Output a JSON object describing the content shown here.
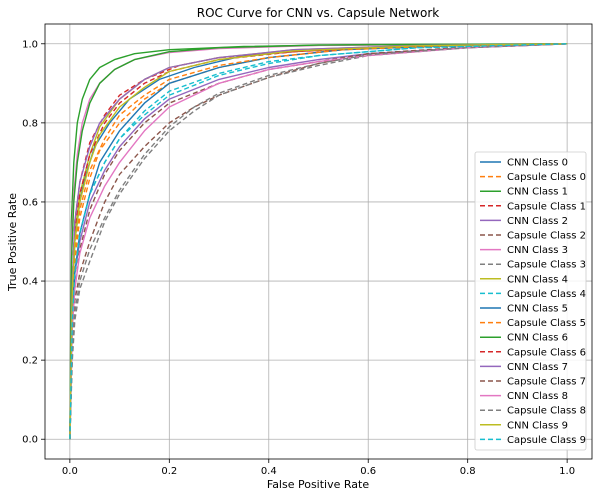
{
  "chart_data": {
    "type": "line",
    "title": "ROC Curve for CNN vs. Capsule Network",
    "xlabel": "False Positive Rate",
    "ylabel": "True Positive Rate",
    "xlim": [
      -0.05,
      1.05
    ],
    "ylim": [
      -0.05,
      1.05
    ],
    "xticks": [
      "0.0",
      "0.2",
      "0.4",
      "0.6",
      "0.8",
      "1.0"
    ],
    "yticks": [
      "0.0",
      "0.2",
      "0.4",
      "0.6",
      "0.8",
      "1.0"
    ],
    "grid": true,
    "legend_position": "lower-right",
    "series": [
      {
        "name": "CNN Class 0",
        "color": "#1f77b4",
        "dashed": false,
        "points": [
          [
            0,
            0
          ],
          [
            0.005,
            0.35
          ],
          [
            0.01,
            0.5
          ],
          [
            0.02,
            0.6
          ],
          [
            0.03,
            0.66
          ],
          [
            0.05,
            0.74
          ],
          [
            0.08,
            0.8
          ],
          [
            0.12,
            0.86
          ],
          [
            0.18,
            0.91
          ],
          [
            0.25,
            0.94
          ],
          [
            0.35,
            0.97
          ],
          [
            0.5,
            0.985
          ],
          [
            0.7,
            0.995
          ],
          [
            1,
            1
          ]
        ]
      },
      {
        "name": "Capsule Class 0",
        "color": "#ff7f0e",
        "dashed": true,
        "points": [
          [
            0,
            0
          ],
          [
            0.005,
            0.3
          ],
          [
            0.01,
            0.45
          ],
          [
            0.02,
            0.56
          ],
          [
            0.04,
            0.66
          ],
          [
            0.06,
            0.73
          ],
          [
            0.1,
            0.8
          ],
          [
            0.15,
            0.86
          ],
          [
            0.2,
            0.9
          ],
          [
            0.3,
            0.94
          ],
          [
            0.4,
            0.965
          ],
          [
            0.55,
            0.985
          ],
          [
            0.75,
            0.995
          ],
          [
            1,
            1
          ]
        ]
      },
      {
        "name": "CNN Class 1",
        "color": "#2ca02c",
        "dashed": false,
        "points": [
          [
            0,
            0
          ],
          [
            0.003,
            0.55
          ],
          [
            0.008,
            0.7
          ],
          [
            0.015,
            0.8
          ],
          [
            0.025,
            0.86
          ],
          [
            0.04,
            0.91
          ],
          [
            0.06,
            0.94
          ],
          [
            0.09,
            0.96
          ],
          [
            0.13,
            0.975
          ],
          [
            0.2,
            0.985
          ],
          [
            0.35,
            0.993
          ],
          [
            0.6,
            0.998
          ],
          [
            1,
            1
          ]
        ]
      },
      {
        "name": "Capsule Class 1",
        "color": "#d62728",
        "dashed": true,
        "points": [
          [
            0,
            0
          ],
          [
            0.005,
            0.4
          ],
          [
            0.01,
            0.55
          ],
          [
            0.02,
            0.65
          ],
          [
            0.04,
            0.75
          ],
          [
            0.07,
            0.82
          ],
          [
            0.1,
            0.87
          ],
          [
            0.15,
            0.91
          ],
          [
            0.22,
            0.945
          ],
          [
            0.3,
            0.965
          ],
          [
            0.45,
            0.98
          ],
          [
            0.65,
            0.992
          ],
          [
            1,
            1
          ]
        ]
      },
      {
        "name": "CNN Class 2",
        "color": "#9467bd",
        "dashed": false,
        "points": [
          [
            0,
            0
          ],
          [
            0.005,
            0.3
          ],
          [
            0.01,
            0.42
          ],
          [
            0.02,
            0.5
          ],
          [
            0.04,
            0.6
          ],
          [
            0.07,
            0.68
          ],
          [
            0.1,
            0.74
          ],
          [
            0.15,
            0.81
          ],
          [
            0.2,
            0.86
          ],
          [
            0.3,
            0.91
          ],
          [
            0.4,
            0.94
          ],
          [
            0.5,
            0.96
          ],
          [
            0.6,
            0.975
          ],
          [
            0.8,
            0.99
          ],
          [
            1,
            1
          ]
        ]
      },
      {
        "name": "Capsule Class 2",
        "color": "#8c564b",
        "dashed": true,
        "points": [
          [
            0,
            0
          ],
          [
            0.005,
            0.25
          ],
          [
            0.01,
            0.35
          ],
          [
            0.02,
            0.42
          ],
          [
            0.04,
            0.5
          ],
          [
            0.07,
            0.6
          ],
          [
            0.1,
            0.67
          ],
          [
            0.15,
            0.74
          ],
          [
            0.2,
            0.8
          ],
          [
            0.25,
            0.84
          ],
          [
            0.3,
            0.87
          ],
          [
            0.4,
            0.915
          ],
          [
            0.5,
            0.95
          ],
          [
            0.6,
            0.975
          ],
          [
            0.8,
            0.992
          ],
          [
            1,
            1
          ]
        ]
      },
      {
        "name": "CNN Class 3",
        "color": "#e377c2",
        "dashed": false,
        "points": [
          [
            0,
            0
          ],
          [
            0.003,
            0.5
          ],
          [
            0.008,
            0.62
          ],
          [
            0.015,
            0.72
          ],
          [
            0.025,
            0.8
          ],
          [
            0.04,
            0.86
          ],
          [
            0.06,
            0.9
          ],
          [
            0.09,
            0.935
          ],
          [
            0.13,
            0.96
          ],
          [
            0.2,
            0.978
          ],
          [
            0.3,
            0.988
          ],
          [
            0.5,
            0.996
          ],
          [
            1,
            1
          ]
        ]
      },
      {
        "name": "Capsule Class 3",
        "color": "#7f7f7f",
        "dashed": true,
        "points": [
          [
            0,
            0
          ],
          [
            0.005,
            0.2
          ],
          [
            0.01,
            0.3
          ],
          [
            0.02,
            0.38
          ],
          [
            0.04,
            0.45
          ],
          [
            0.07,
            0.55
          ],
          [
            0.1,
            0.62
          ],
          [
            0.15,
            0.71
          ],
          [
            0.2,
            0.78
          ],
          [
            0.25,
            0.83
          ],
          [
            0.3,
            0.87
          ],
          [
            0.4,
            0.915
          ],
          [
            0.5,
            0.945
          ],
          [
            0.6,
            0.97
          ],
          [
            0.8,
            0.99
          ],
          [
            1,
            1
          ]
        ]
      },
      {
        "name": "CNN Class 4",
        "color": "#bcbd22",
        "dashed": false,
        "points": [
          [
            0,
            0
          ],
          [
            0.005,
            0.4
          ],
          [
            0.01,
            0.52
          ],
          [
            0.02,
            0.62
          ],
          [
            0.04,
            0.72
          ],
          [
            0.06,
            0.79
          ],
          [
            0.1,
            0.86
          ],
          [
            0.15,
            0.91
          ],
          [
            0.2,
            0.94
          ],
          [
            0.3,
            0.965
          ],
          [
            0.45,
            0.985
          ],
          [
            0.7,
            0.996
          ],
          [
            1,
            1
          ]
        ]
      },
      {
        "name": "Capsule Class 4",
        "color": "#17becf",
        "dashed": true,
        "points": [
          [
            0,
            0
          ],
          [
            0.005,
            0.3
          ],
          [
            0.01,
            0.42
          ],
          [
            0.02,
            0.52
          ],
          [
            0.04,
            0.62
          ],
          [
            0.07,
            0.7
          ],
          [
            0.1,
            0.76
          ],
          [
            0.15,
            0.82
          ],
          [
            0.2,
            0.87
          ],
          [
            0.3,
            0.92
          ],
          [
            0.4,
            0.95
          ],
          [
            0.5,
            0.97
          ],
          [
            0.7,
            0.99
          ],
          [
            1,
            1
          ]
        ]
      },
      {
        "name": "CNN Class 5",
        "color": "#1f77b4",
        "dashed": false,
        "points": [
          [
            0,
            0
          ],
          [
            0.005,
            0.3
          ],
          [
            0.01,
            0.42
          ],
          [
            0.02,
            0.52
          ],
          [
            0.04,
            0.62
          ],
          [
            0.06,
            0.7
          ],
          [
            0.1,
            0.78
          ],
          [
            0.15,
            0.85
          ],
          [
            0.2,
            0.9
          ],
          [
            0.3,
            0.94
          ],
          [
            0.4,
            0.965
          ],
          [
            0.55,
            0.985
          ],
          [
            0.8,
            0.997
          ],
          [
            1,
            1
          ]
        ]
      },
      {
        "name": "Capsule Class 5",
        "color": "#ff7f0e",
        "dashed": true,
        "points": [
          [
            0,
            0
          ],
          [
            0.005,
            0.35
          ],
          [
            0.01,
            0.48
          ],
          [
            0.02,
            0.58
          ],
          [
            0.04,
            0.68
          ],
          [
            0.07,
            0.76
          ],
          [
            0.1,
            0.82
          ],
          [
            0.15,
            0.87
          ],
          [
            0.2,
            0.91
          ],
          [
            0.3,
            0.945
          ],
          [
            0.4,
            0.965
          ],
          [
            0.55,
            0.985
          ],
          [
            0.8,
            0.997
          ],
          [
            1,
            1
          ]
        ]
      },
      {
        "name": "CNN Class 6",
        "color": "#2ca02c",
        "dashed": false,
        "points": [
          [
            0,
            0
          ],
          [
            0.003,
            0.45
          ],
          [
            0.008,
            0.6
          ],
          [
            0.015,
            0.7
          ],
          [
            0.025,
            0.78
          ],
          [
            0.04,
            0.85
          ],
          [
            0.06,
            0.9
          ],
          [
            0.09,
            0.935
          ],
          [
            0.13,
            0.96
          ],
          [
            0.2,
            0.98
          ],
          [
            0.3,
            0.99
          ],
          [
            0.5,
            0.997
          ],
          [
            1,
            1
          ]
        ]
      },
      {
        "name": "Capsule Class 6",
        "color": "#d62728",
        "dashed": true,
        "points": [
          [
            0,
            0
          ],
          [
            0.005,
            0.4
          ],
          [
            0.01,
            0.52
          ],
          [
            0.02,
            0.62
          ],
          [
            0.04,
            0.72
          ],
          [
            0.07,
            0.8
          ],
          [
            0.1,
            0.85
          ],
          [
            0.15,
            0.9
          ],
          [
            0.2,
            0.93
          ],
          [
            0.3,
            0.96
          ],
          [
            0.45,
            0.98
          ],
          [
            0.65,
            0.993
          ],
          [
            1,
            1
          ]
        ]
      },
      {
        "name": "CNN Class 7",
        "color": "#9467bd",
        "dashed": false,
        "points": [
          [
            0,
            0
          ],
          [
            0.005,
            0.4
          ],
          [
            0.01,
            0.55
          ],
          [
            0.02,
            0.65
          ],
          [
            0.04,
            0.74
          ],
          [
            0.06,
            0.8
          ],
          [
            0.1,
            0.86
          ],
          [
            0.15,
            0.91
          ],
          [
            0.2,
            0.94
          ],
          [
            0.3,
            0.965
          ],
          [
            0.45,
            0.985
          ],
          [
            0.7,
            0.996
          ],
          [
            1,
            1
          ]
        ]
      },
      {
        "name": "Capsule Class 7",
        "color": "#8c564b",
        "dashed": true,
        "points": [
          [
            0,
            0
          ],
          [
            0.005,
            0.25
          ],
          [
            0.01,
            0.38
          ],
          [
            0.02,
            0.48
          ],
          [
            0.04,
            0.58
          ],
          [
            0.07,
            0.67
          ],
          [
            0.1,
            0.73
          ],
          [
            0.15,
            0.8
          ],
          [
            0.2,
            0.85
          ],
          [
            0.3,
            0.9
          ],
          [
            0.4,
            0.935
          ],
          [
            0.5,
            0.955
          ],
          [
            0.6,
            0.975
          ],
          [
            0.8,
            0.99
          ],
          [
            1,
            1
          ]
        ]
      },
      {
        "name": "CNN Class 8",
        "color": "#e377c2",
        "dashed": false,
        "points": [
          [
            0,
            0
          ],
          [
            0.005,
            0.28
          ],
          [
            0.01,
            0.38
          ],
          [
            0.02,
            0.47
          ],
          [
            0.04,
            0.56
          ],
          [
            0.07,
            0.64
          ],
          [
            0.1,
            0.7
          ],
          [
            0.15,
            0.78
          ],
          [
            0.2,
            0.84
          ],
          [
            0.3,
            0.9
          ],
          [
            0.4,
            0.935
          ],
          [
            0.5,
            0.955
          ],
          [
            0.6,
            0.97
          ],
          [
            0.8,
            0.99
          ],
          [
            1,
            1
          ]
        ]
      },
      {
        "name": "Capsule Class 8",
        "color": "#7f7f7f",
        "dashed": true,
        "points": [
          [
            0,
            0
          ],
          [
            0.005,
            0.22
          ],
          [
            0.01,
            0.32
          ],
          [
            0.02,
            0.4
          ],
          [
            0.04,
            0.48
          ],
          [
            0.07,
            0.56
          ],
          [
            0.1,
            0.63
          ],
          [
            0.15,
            0.72
          ],
          [
            0.2,
            0.79
          ],
          [
            0.25,
            0.84
          ],
          [
            0.3,
            0.875
          ],
          [
            0.4,
            0.92
          ],
          [
            0.5,
            0.95
          ],
          [
            0.6,
            0.972
          ],
          [
            0.8,
            0.99
          ],
          [
            1,
            1
          ]
        ]
      },
      {
        "name": "CNN Class 9",
        "color": "#bcbd22",
        "dashed": false,
        "points": [
          [
            0,
            0
          ],
          [
            0.005,
            0.38
          ],
          [
            0.01,
            0.5
          ],
          [
            0.02,
            0.6
          ],
          [
            0.04,
            0.7
          ],
          [
            0.06,
            0.77
          ],
          [
            0.1,
            0.84
          ],
          [
            0.15,
            0.89
          ],
          [
            0.2,
            0.93
          ],
          [
            0.3,
            0.96
          ],
          [
            0.45,
            0.982
          ],
          [
            0.7,
            0.995
          ],
          [
            1,
            1
          ]
        ]
      },
      {
        "name": "Capsule Class 9",
        "color": "#17becf",
        "dashed": true,
        "points": [
          [
            0,
            0
          ],
          [
            0.005,
            0.3
          ],
          [
            0.01,
            0.42
          ],
          [
            0.02,
            0.52
          ],
          [
            0.04,
            0.62
          ],
          [
            0.07,
            0.7
          ],
          [
            0.1,
            0.76
          ],
          [
            0.15,
            0.83
          ],
          [
            0.2,
            0.88
          ],
          [
            0.3,
            0.925
          ],
          [
            0.4,
            0.955
          ],
          [
            0.5,
            0.97
          ],
          [
            0.7,
            0.99
          ],
          [
            1,
            1
          ]
        ]
      }
    ]
  }
}
